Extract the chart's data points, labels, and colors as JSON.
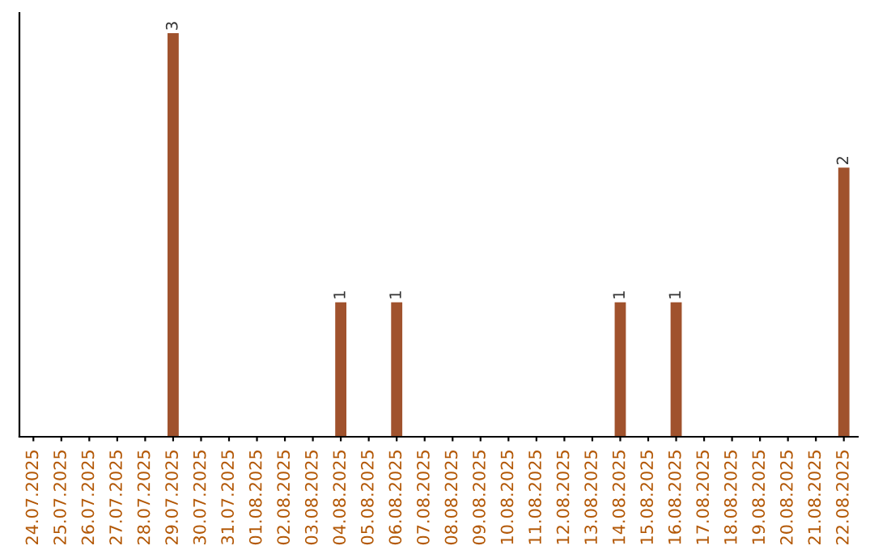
{
  "chart_data": {
    "type": "bar",
    "categories": [
      "24.07.2025",
      "25.07.2025",
      "26.07.2025",
      "27.07.2025",
      "28.07.2025",
      "29.07.2025",
      "30.07.2025",
      "31.07.2025",
      "01.08.2025",
      "02.08.2025",
      "03.08.2025",
      "04.08.2025",
      "05.08.2025",
      "06.08.2025",
      "07.08.2025",
      "08.08.2025",
      "09.08.2025",
      "10.08.2025",
      "11.08.2025",
      "12.08.2025",
      "13.08.2025",
      "14.08.2025",
      "15.08.2025",
      "16.08.2025",
      "17.08.2025",
      "18.08.2025",
      "19.08.2025",
      "20.08.2025",
      "21.08.2025",
      "22.08.2025"
    ],
    "values": [
      0,
      0,
      0,
      0,
      0,
      3,
      0,
      0,
      0,
      0,
      0,
      1,
      0,
      1,
      0,
      0,
      0,
      0,
      0,
      0,
      0,
      1,
      0,
      1,
      0,
      0,
      0,
      0,
      0,
      2
    ],
    "value_labels": [
      null,
      null,
      null,
      null,
      null,
      "3",
      null,
      null,
      null,
      null,
      null,
      "1",
      null,
      "1",
      null,
      null,
      null,
      null,
      null,
      null,
      null,
      "1",
      null,
      "1",
      null,
      null,
      null,
      null,
      null,
      "2"
    ],
    "color": "#a0522d",
    "tick_labels": "x",
    "grid": false,
    "legend": false
  }
}
